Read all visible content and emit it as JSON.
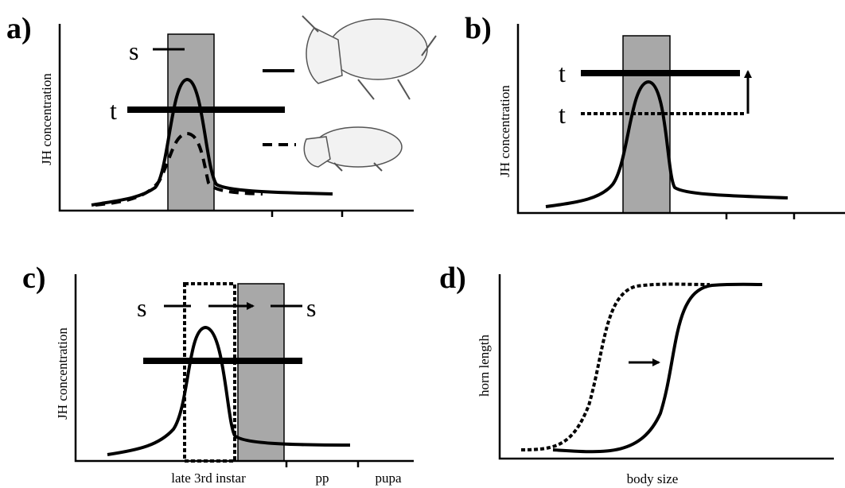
{
  "panels": [
    {
      "label": "a)",
      "y_axis_label": "JH concentration",
      "sensitive_period_label": "s",
      "threshold_label": "t"
    },
    {
      "label": "b)",
      "y_axis_label": "JH concentration",
      "threshold_labels": [
        "t",
        "t"
      ]
    },
    {
      "label": "c)",
      "y_axis_label": "JH concentration",
      "sensitive_period_labels": [
        "s",
        "s"
      ],
      "x_labels": [
        "late 3rd instar",
        "pp",
        "pupa"
      ]
    },
    {
      "label": "d)",
      "y_axis_label": "horn length",
      "x_axis_label": "body size"
    }
  ]
}
